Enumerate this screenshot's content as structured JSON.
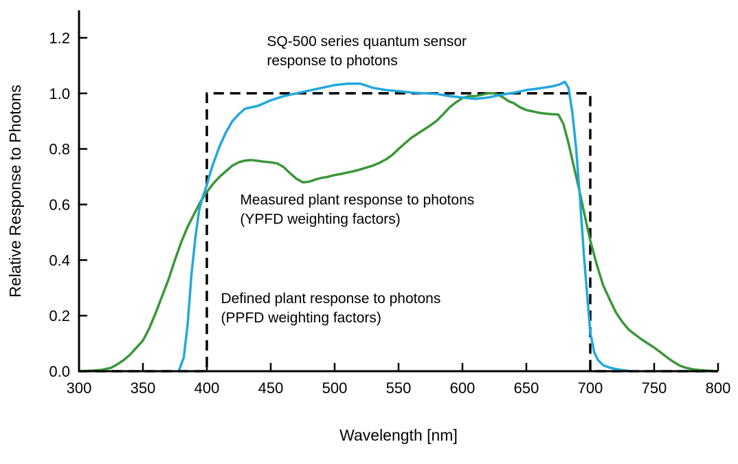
{
  "chart_data": {
    "type": "line",
    "title": "",
    "xlabel": "Wavelength [nm]",
    "ylabel": "Relative Response to Photons",
    "xlim": [
      300,
      800
    ],
    "ylim": [
      0,
      1.25
    ],
    "grid": false,
    "legend_position": "none",
    "xticks": [
      300,
      350,
      400,
      450,
      500,
      550,
      600,
      650,
      700,
      750,
      800
    ],
    "xtick_labels": [
      "300",
      "350",
      "400",
      "450",
      "500",
      "550",
      "600",
      "650",
      "700",
      "750",
      "800"
    ],
    "yticks": [
      0.0,
      0.2,
      0.4,
      0.6,
      0.8,
      1.0,
      1.2
    ],
    "ytick_labels": [
      "0.0",
      "0.2",
      "0.4",
      "0.6",
      "0.8",
      "1.0",
      "1.2"
    ],
    "series": [
      {
        "name": "Defined plant response to photons (PPFD weighting factors)",
        "color": "#000000",
        "style": "dashed",
        "points": [
          [
            300,
            0
          ],
          [
            400,
            0
          ],
          [
            400,
            1.0
          ],
          [
            700,
            1.0
          ],
          [
            700,
            0
          ],
          [
            800,
            0
          ]
        ]
      },
      {
        "name": "Measured plant response to photons (YPFD weighting factors)",
        "color": "#3a9639",
        "style": "solid",
        "points": [
          [
            300,
            0
          ],
          [
            310,
            0.002
          ],
          [
            318,
            0.005
          ],
          [
            325,
            0.012
          ],
          [
            330,
            0.025
          ],
          [
            335,
            0.04
          ],
          [
            340,
            0.06
          ],
          [
            345,
            0.085
          ],
          [
            350,
            0.11
          ],
          [
            355,
            0.155
          ],
          [
            360,
            0.21
          ],
          [
            365,
            0.27
          ],
          [
            370,
            0.33
          ],
          [
            375,
            0.4
          ],
          [
            380,
            0.465
          ],
          [
            385,
            0.52
          ],
          [
            390,
            0.565
          ],
          [
            395,
            0.61
          ],
          [
            400,
            0.645
          ],
          [
            405,
            0.675
          ],
          [
            410,
            0.7
          ],
          [
            415,
            0.72
          ],
          [
            420,
            0.74
          ],
          [
            425,
            0.752
          ],
          [
            430,
            0.758
          ],
          [
            435,
            0.76
          ],
          [
            440,
            0.757
          ],
          [
            445,
            0.754
          ],
          [
            450,
            0.752
          ],
          [
            455,
            0.748
          ],
          [
            460,
            0.735
          ],
          [
            465,
            0.713
          ],
          [
            470,
            0.693
          ],
          [
            475,
            0.68
          ],
          [
            480,
            0.682
          ],
          [
            485,
            0.69
          ],
          [
            490,
            0.696
          ],
          [
            495,
            0.7
          ],
          [
            500,
            0.706
          ],
          [
            505,
            0.71
          ],
          [
            510,
            0.715
          ],
          [
            515,
            0.72
          ],
          [
            520,
            0.726
          ],
          [
            525,
            0.733
          ],
          [
            530,
            0.74
          ],
          [
            535,
            0.75
          ],
          [
            540,
            0.762
          ],
          [
            545,
            0.778
          ],
          [
            550,
            0.8
          ],
          [
            555,
            0.82
          ],
          [
            560,
            0.84
          ],
          [
            565,
            0.855
          ],
          [
            570,
            0.87
          ],
          [
            575,
            0.885
          ],
          [
            580,
            0.902
          ],
          [
            585,
            0.925
          ],
          [
            590,
            0.95
          ],
          [
            595,
            0.968
          ],
          [
            600,
            0.983
          ],
          [
            605,
            0.99
          ],
          [
            610,
            0.99
          ],
          [
            615,
            0.995
          ],
          [
            620,
            1.0
          ],
          [
            625,
            1.0
          ],
          [
            628,
            0.995
          ],
          [
            632,
            0.985
          ],
          [
            636,
            0.972
          ],
          [
            640,
            0.965
          ],
          [
            645,
            0.95
          ],
          [
            650,
            0.94
          ],
          [
            655,
            0.935
          ],
          [
            660,
            0.93
          ],
          [
            665,
            0.927
          ],
          [
            670,
            0.925
          ],
          [
            675,
            0.924
          ],
          [
            679,
            0.89
          ],
          [
            683,
            0.82
          ],
          [
            687,
            0.74
          ],
          [
            691,
            0.66
          ],
          [
            695,
            0.575
          ],
          [
            700,
            0.47
          ],
          [
            705,
            0.385
          ],
          [
            710,
            0.31
          ],
          [
            715,
            0.26
          ],
          [
            720,
            0.212
          ],
          [
            725,
            0.178
          ],
          [
            730,
            0.15
          ],
          [
            735,
            0.132
          ],
          [
            740,
            0.115
          ],
          [
            745,
            0.1
          ],
          [
            750,
            0.085
          ],
          [
            755,
            0.068
          ],
          [
            760,
            0.05
          ],
          [
            765,
            0.034
          ],
          [
            770,
            0.02
          ],
          [
            775,
            0.012
          ],
          [
            780,
            0.007
          ],
          [
            786,
            0.004
          ],
          [
            792,
            0.002
          ],
          [
            800,
            0.0
          ]
        ]
      },
      {
        "name": "SQ-500 series quantum sensor response to photons",
        "color": "#22a7de",
        "style": "solid",
        "points": [
          [
            378,
            0
          ],
          [
            382,
            0.05
          ],
          [
            385,
            0.17
          ],
          [
            388,
            0.35
          ],
          [
            391,
            0.48
          ],
          [
            394,
            0.58
          ],
          [
            397,
            0.63
          ],
          [
            400,
            0.67
          ],
          [
            403,
            0.72
          ],
          [
            406,
            0.76
          ],
          [
            410,
            0.81
          ],
          [
            415,
            0.86
          ],
          [
            420,
            0.9
          ],
          [
            425,
            0.925
          ],
          [
            430,
            0.945
          ],
          [
            435,
            0.95
          ],
          [
            440,
            0.955
          ],
          [
            445,
            0.965
          ],
          [
            450,
            0.975
          ],
          [
            460,
            0.99
          ],
          [
            470,
            1.0
          ],
          [
            480,
            1.01
          ],
          [
            490,
            1.02
          ],
          [
            500,
            1.03
          ],
          [
            510,
            1.035
          ],
          [
            520,
            1.035
          ],
          [
            530,
            1.02
          ],
          [
            540,
            1.012
          ],
          [
            550,
            1.008
          ],
          [
            560,
            1.003
          ],
          [
            570,
            1.0
          ],
          [
            580,
            0.998
          ],
          [
            590,
            0.99
          ],
          [
            600,
            0.985
          ],
          [
            610,
            0.98
          ],
          [
            620,
            0.985
          ],
          [
            630,
            0.995
          ],
          [
            640,
            1.002
          ],
          [
            650,
            1.012
          ],
          [
            660,
            1.018
          ],
          [
            670,
            1.025
          ],
          [
            676,
            1.032
          ],
          [
            680,
            1.042
          ],
          [
            683,
            1.02
          ],
          [
            686,
            0.93
          ],
          [
            689,
            0.8
          ],
          [
            692,
            0.62
          ],
          [
            695,
            0.42
          ],
          [
            698,
            0.25
          ],
          [
            700,
            0.14
          ],
          [
            703,
            0.07
          ],
          [
            706,
            0.04
          ],
          [
            710,
            0.022
          ],
          [
            715,
            0.013
          ],
          [
            720,
            0.008
          ],
          [
            726,
            0.003
          ],
          [
            732,
            0.0
          ]
        ]
      }
    ],
    "annotations": [
      {
        "id": "sensor-label",
        "lines": [
          "SQ-500 series quantum sensor",
          "response to photons"
        ],
        "color": "#22a7de",
        "x": 447,
        "y": 1.17
      },
      {
        "id": "ypfd-label",
        "lines": [
          "Measured plant response to photons",
          "(YPFD weighting factors)"
        ],
        "color": "#3a9639",
        "x": 426,
        "y": 0.6
      },
      {
        "id": "ppfd-label",
        "lines": [
          "Defined plant response to photons",
          "(PPFD weighting factors)"
        ],
        "color": "#000000",
        "x": 411,
        "y": 0.245
      }
    ]
  }
}
